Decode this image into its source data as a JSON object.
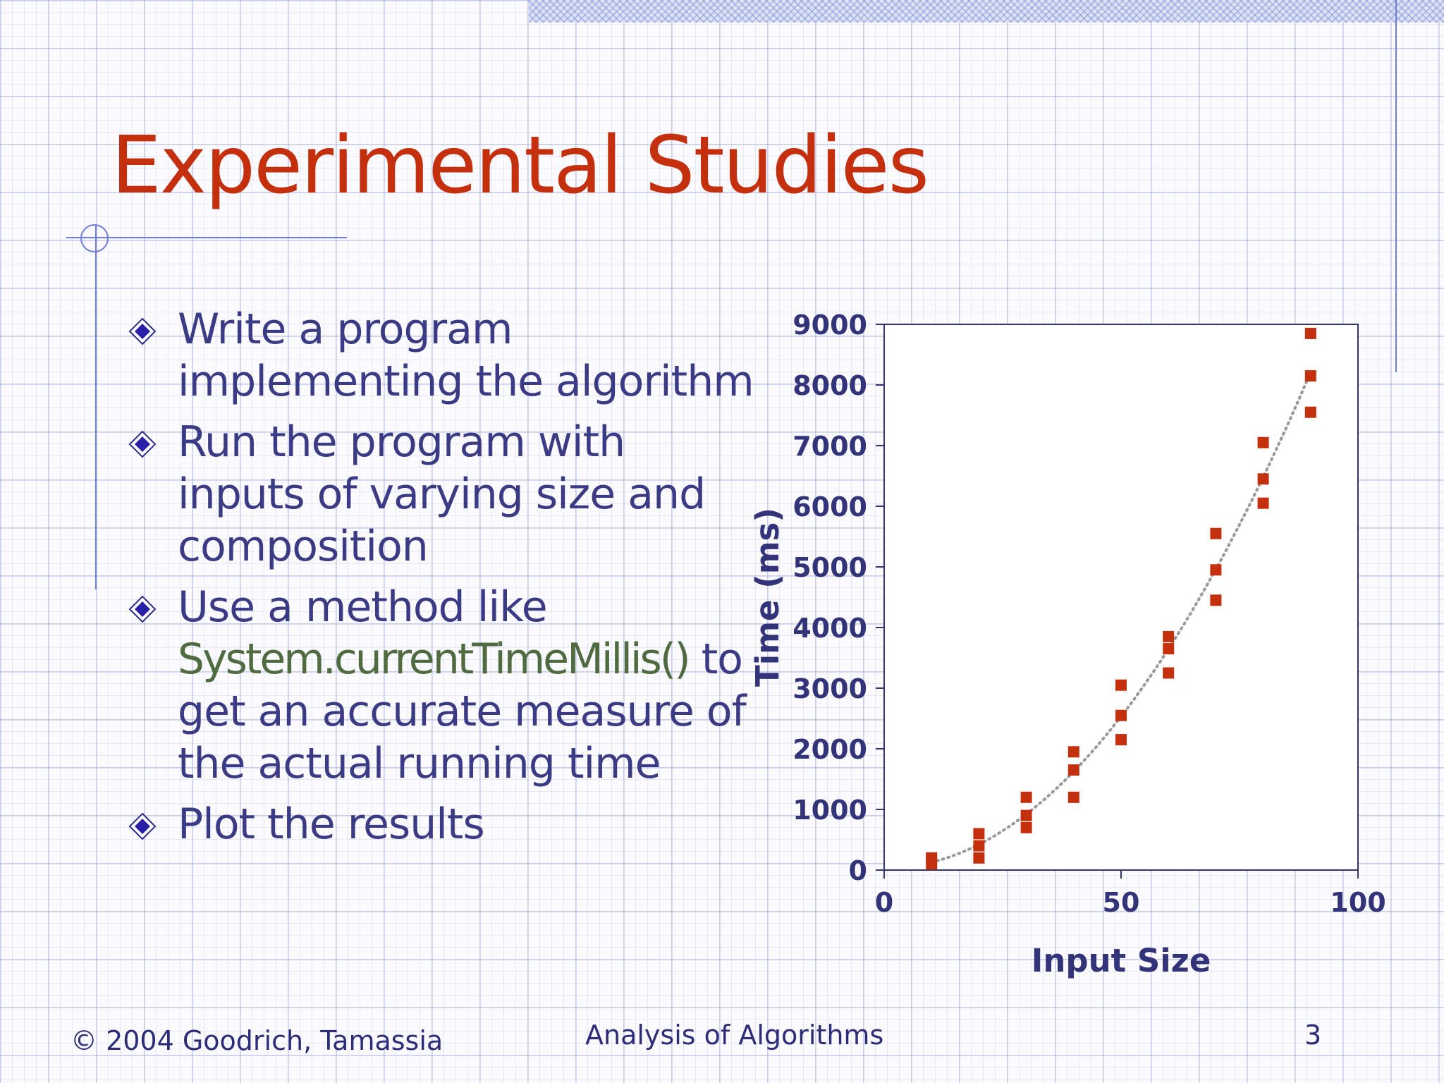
{
  "slide": {
    "title": "Experimental Studies",
    "bullets": [
      {
        "text": "Write a program implementing the algorithm"
      },
      {
        "text": "Run the program with inputs of varying size and composition"
      },
      {
        "pre": "Use a method like",
        "code": "System.currentTimeMillis()",
        "post": " to get an accurate measure of the actual running time"
      },
      {
        "text": "Plot the results"
      }
    ],
    "footer": {
      "left": "© 2004 Goodrich, Tamassia",
      "center": "Analysis of Algorithms",
      "page": "3"
    }
  },
  "colors": {
    "title": "#c4300e",
    "body_text": "#3a3a85",
    "code_text": "#4f6b3f",
    "accent_line": "#6f7fd9",
    "marker": "#c4300e",
    "axis": "#33337a",
    "trend": "#999999"
  },
  "chart_data": {
    "type": "scatter",
    "xlabel": "Input Size",
    "ylabel": "Time (ms)",
    "xlim": [
      0,
      100
    ],
    "ylim": [
      0,
      9000
    ],
    "xticks": [
      0,
      50,
      100
    ],
    "yticks": [
      0,
      1000,
      2000,
      3000,
      4000,
      5000,
      6000,
      7000,
      8000,
      9000
    ],
    "grid": false,
    "marker": "square",
    "trendline": "dotted curve",
    "points": [
      {
        "x": 10,
        "y": 100
      },
      {
        "x": 10,
        "y": 200
      },
      {
        "x": 20,
        "y": 200
      },
      {
        "x": 20,
        "y": 400
      },
      {
        "x": 20,
        "y": 600
      },
      {
        "x": 30,
        "y": 700
      },
      {
        "x": 30,
        "y": 900
      },
      {
        "x": 30,
        "y": 1200
      },
      {
        "x": 40,
        "y": 1200
      },
      {
        "x": 40,
        "y": 1650
      },
      {
        "x": 40,
        "y": 1950
      },
      {
        "x": 50,
        "y": 2150
      },
      {
        "x": 50,
        "y": 2550
      },
      {
        "x": 50,
        "y": 3050
      },
      {
        "x": 60,
        "y": 3250
      },
      {
        "x": 60,
        "y": 3650
      },
      {
        "x": 60,
        "y": 3850
      },
      {
        "x": 70,
        "y": 4450
      },
      {
        "x": 70,
        "y": 4950
      },
      {
        "x": 70,
        "y": 5550
      },
      {
        "x": 80,
        "y": 6050
      },
      {
        "x": 80,
        "y": 6450
      },
      {
        "x": 80,
        "y": 7050
      },
      {
        "x": 90,
        "y": 7550
      },
      {
        "x": 90,
        "y": 8150
      },
      {
        "x": 90,
        "y": 8850
      }
    ]
  }
}
